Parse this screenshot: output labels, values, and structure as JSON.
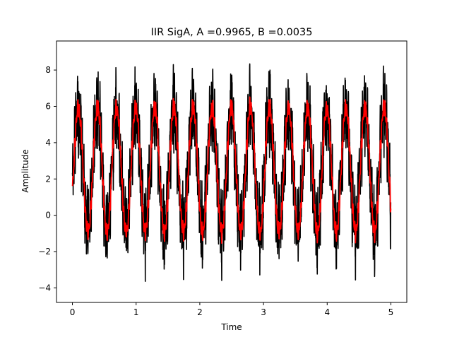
{
  "chart_data": {
    "type": "line",
    "title": "IIR SigA, A =0.9965, B =0.0035",
    "xlabel": "Time",
    "ylabel": "Amplitude",
    "xlim": [
      -0.25,
      5.25
    ],
    "ylim": [
      -4.8,
      9.6
    ],
    "xticks": [
      0,
      1,
      2,
      3,
      4,
      5
    ],
    "yticks": [
      -4,
      -2,
      0,
      2,
      4,
      6,
      8
    ],
    "grid": false,
    "legend": "none",
    "signal": {
      "duration": 5,
      "offset": 2.5,
      "fundamental_hz": 3.333,
      "amplitude": 3.3,
      "harmonic_hz": 40,
      "harmonic_amplitude": 1.1,
      "noise_amplitude": 1.2
    },
    "series": [
      {
        "color": "#000000",
        "style": "raw",
        "y_range_observed": [
          -4.1,
          9.2
        ]
      },
      {
        "color": "#ff0000",
        "style": "filtered",
        "y_range_observed": [
          -1.0,
          6.5
        ]
      }
    ]
  }
}
